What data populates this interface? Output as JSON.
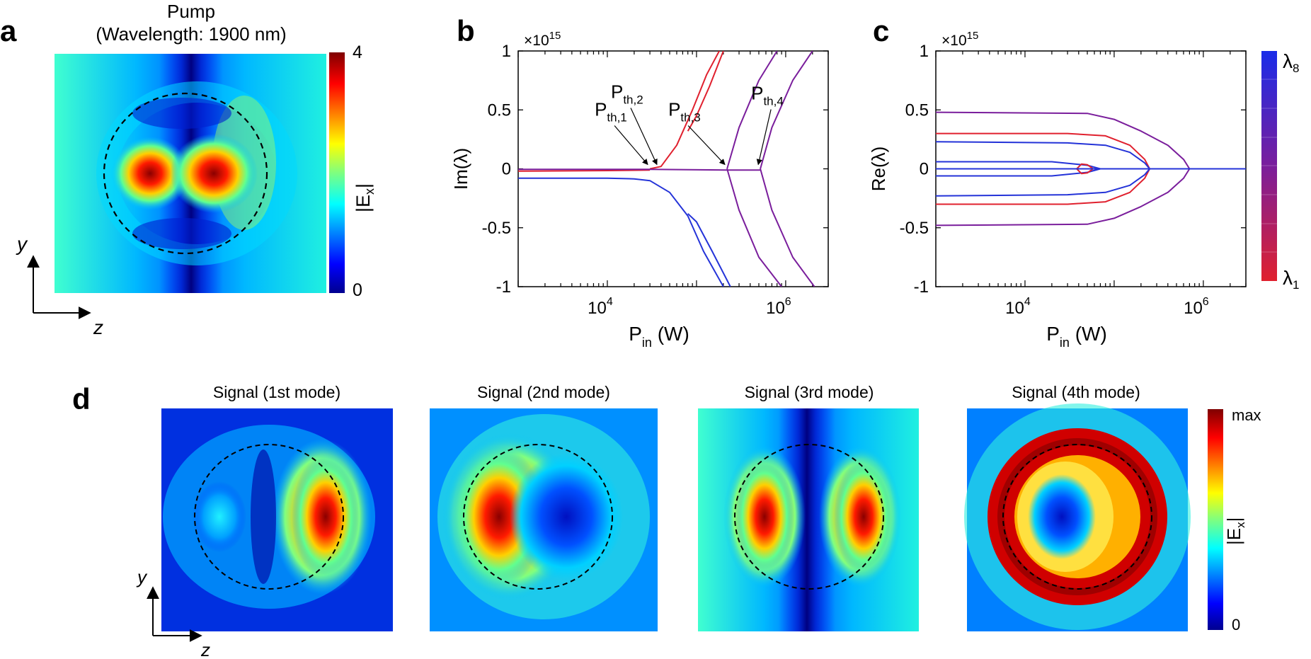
{
  "figure": {
    "panel_labels": [
      "a",
      "b",
      "c",
      "d"
    ],
    "pump": {
      "title_line1": "Pump",
      "title_line2": "(Wavelength: 1900 nm)",
      "colorbar_max": "4",
      "colorbar_min": "0",
      "colorbar_label": "|E",
      "colorbar_label_sub": "x",
      "colorbar_label_end": "|"
    },
    "axes": {
      "y": "y",
      "z": "z"
    },
    "signals": [
      {
        "title": "Signal (1st mode)"
      },
      {
        "title": "Signal (2nd mode)"
      },
      {
        "title": "Signal (3rd mode)"
      },
      {
        "title": "Signal (4th mode)"
      }
    ],
    "signal_colorbar": {
      "max": "max",
      "min": "0",
      "label": "|E",
      "label_sub": "x",
      "label_end": "|"
    },
    "lambda_colorbar": {
      "top": "λ",
      "top_sub": "8",
      "bottom": "λ",
      "bottom_sub": "1"
    },
    "colors": {
      "red": "#e0202e",
      "blue": "#2433d8",
      "purple": "#7a1e9c",
      "jet_dark_blue": "#00008f",
      "jet_dark_red": "#7f0000"
    }
  },
  "chart_data": [
    {
      "id": "b",
      "type": "line",
      "ylabel": "Im(λ)",
      "xlabel": "P",
      "xlabel_sub": "in",
      "xlabel_unit": " (W)",
      "exponent": "×10",
      "exponent_sup": "15",
      "xscale": "log",
      "xlim": [
        1000,
        3000000
      ],
      "ylim": [
        -1,
        1
      ],
      "yticks": [
        1,
        0.5,
        0,
        -0.5,
        -1
      ],
      "ytick_labels": [
        "1",
        "0.5",
        "0",
        "-0.5",
        "-1"
      ],
      "xtick_labels": [
        {
          "base": "10",
          "sup": "4",
          "v": 10000
        },
        {
          "base": "10",
          "sup": "6",
          "v": 1000000
        }
      ],
      "annotations": [
        {
          "label": "P",
          "sub": "th,1",
          "x": 30000,
          "y": 0.0
        },
        {
          "label": "P",
          "sub": "th,2",
          "x": 38000,
          "y": 0.0
        },
        {
          "label": "P",
          "sub": "th,3",
          "x": 220000,
          "y": 0.0
        },
        {
          "label": "P",
          "sub": "th,4",
          "x": 520000,
          "y": 0.0
        }
      ],
      "series": [
        {
          "name": "blue-lower",
          "color": "blue",
          "x": [
            1000,
            10000,
            20000,
            30000,
            50000,
            80000,
            120000,
            200000
          ],
          "y": [
            -0.08,
            -0.08,
            -0.085,
            -0.1,
            -0.2,
            -0.4,
            -0.7,
            -1.0
          ]
        },
        {
          "name": "blue-lower-2",
          "color": "blue",
          "x": [
            80000,
            100000,
            150000,
            240000
          ],
          "y": [
            -0.38,
            -0.45,
            -0.7,
            -1.0
          ]
        },
        {
          "name": "red-upper",
          "color": "red",
          "x": [
            30000,
            40000,
            60000,
            90000,
            130000,
            180000
          ],
          "y": [
            0.0,
            0.02,
            0.2,
            0.5,
            0.8,
            1.0
          ]
        },
        {
          "name": "red-upper-2",
          "color": "red",
          "x": [
            80000,
            100000,
            140000,
            200000
          ],
          "y": [
            0.32,
            0.45,
            0.7,
            1.0
          ]
        },
        {
          "name": "flat-red",
          "color": "red",
          "x": [
            1000,
            10000,
            30000
          ],
          "y": [
            -0.02,
            -0.015,
            -0.01
          ]
        },
        {
          "name": "flat-purple",
          "color": "purple",
          "x": [
            1000,
            30000,
            220000,
            520000
          ],
          "y": [
            -0.005,
            -0.005,
            -0.01,
            -0.01
          ]
        },
        {
          "name": "purple-branch-3-up",
          "color": "purple",
          "x": [
            220000,
            300000,
            500000,
            800000
          ],
          "y": [
            0.0,
            0.35,
            0.75,
            1.0
          ]
        },
        {
          "name": "purple-branch-3-down",
          "color": "purple",
          "x": [
            220000,
            300000,
            500000,
            900000
          ],
          "y": [
            0.0,
            -0.35,
            -0.75,
            -1.0
          ]
        },
        {
          "name": "purple-branch-4-up",
          "color": "purple",
          "x": [
            520000,
            700000,
            1200000,
            2000000
          ],
          "y": [
            0.0,
            0.35,
            0.75,
            1.0
          ]
        },
        {
          "name": "purple-branch-4-down",
          "color": "purple",
          "x": [
            520000,
            700000,
            1200000,
            2100000
          ],
          "y": [
            0.0,
            -0.35,
            -0.75,
            -1.0
          ]
        }
      ]
    },
    {
      "id": "c",
      "type": "line",
      "ylabel": "Re(λ)",
      "xlabel": "P",
      "xlabel_sub": "in",
      "xlabel_unit": " (W)",
      "exponent": "×10",
      "exponent_sup": "15",
      "xscale": "log",
      "xlim": [
        1000,
        3000000
      ],
      "ylim": [
        -1,
        1
      ],
      "yticks": [
        1,
        0.5,
        0,
        -0.5,
        -1
      ],
      "ytick_labels": [
        "1",
        "0.5",
        "0",
        "-0.5",
        "-1"
      ],
      "xtick_labels": [
        {
          "base": "10",
          "sup": "4",
          "v": 10000
        },
        {
          "base": "10",
          "sup": "6",
          "v": 1000000
        }
      ],
      "series": [
        {
          "name": "pm-0.48",
          "color": "purple",
          "x": [
            1000,
            50000,
            100000,
            200000,
            400000,
            600000,
            700000
          ],
          "y": [
            0.48,
            0.47,
            0.42,
            0.32,
            0.2,
            0.08,
            0.0
          ]
        },
        {
          "name": "pm-0.48-neg",
          "color": "purple",
          "x": [
            1000,
            50000,
            100000,
            200000,
            400000,
            600000,
            700000
          ],
          "y": [
            -0.48,
            -0.47,
            -0.42,
            -0.32,
            -0.2,
            -0.08,
            0.0
          ]
        },
        {
          "name": "red-0.3",
          "color": "red",
          "x": [
            1000,
            30000,
            80000,
            150000,
            220000,
            250000
          ],
          "y": [
            0.3,
            0.3,
            0.28,
            0.2,
            0.08,
            0.0
          ]
        },
        {
          "name": "red-0.3-neg",
          "color": "red",
          "x": [
            1000,
            30000,
            80000,
            150000,
            220000,
            250000
          ],
          "y": [
            -0.3,
            -0.3,
            -0.28,
            -0.2,
            -0.08,
            0.0
          ]
        },
        {
          "name": "blue-0.23",
          "color": "blue",
          "x": [
            1000,
            30000,
            80000,
            150000,
            220000,
            250000
          ],
          "y": [
            0.23,
            0.22,
            0.2,
            0.14,
            0.05,
            0.0
          ]
        },
        {
          "name": "blue-0.23-neg",
          "color": "blue",
          "x": [
            1000,
            30000,
            80000,
            150000,
            220000,
            250000
          ],
          "y": [
            -0.23,
            -0.22,
            -0.2,
            -0.14,
            -0.05,
            0.0
          ]
        },
        {
          "name": "blue-0.06",
          "color": "blue",
          "x": [
            1000,
            20000,
            50000,
            70000
          ],
          "y": [
            0.06,
            0.06,
            0.03,
            0.0
          ]
        },
        {
          "name": "blue-0.06-neg",
          "color": "blue",
          "x": [
            1000,
            20000,
            50000,
            70000
          ],
          "y": [
            -0.06,
            -0.06,
            -0.03,
            0.0
          ]
        },
        {
          "name": "red-loop-up",
          "color": "red",
          "x": [
            38000,
            43000,
            50000,
            58000
          ],
          "y": [
            0.0,
            0.04,
            0.035,
            0.0
          ]
        },
        {
          "name": "red-loop-down",
          "color": "red",
          "x": [
            38000,
            43000,
            50000,
            58000
          ],
          "y": [
            0.0,
            -0.04,
            -0.035,
            0.0
          ]
        },
        {
          "name": "blue-axis",
          "color": "blue",
          "x": [
            1000,
            3000000
          ],
          "y": [
            0.0,
            0.0
          ]
        }
      ]
    }
  ]
}
